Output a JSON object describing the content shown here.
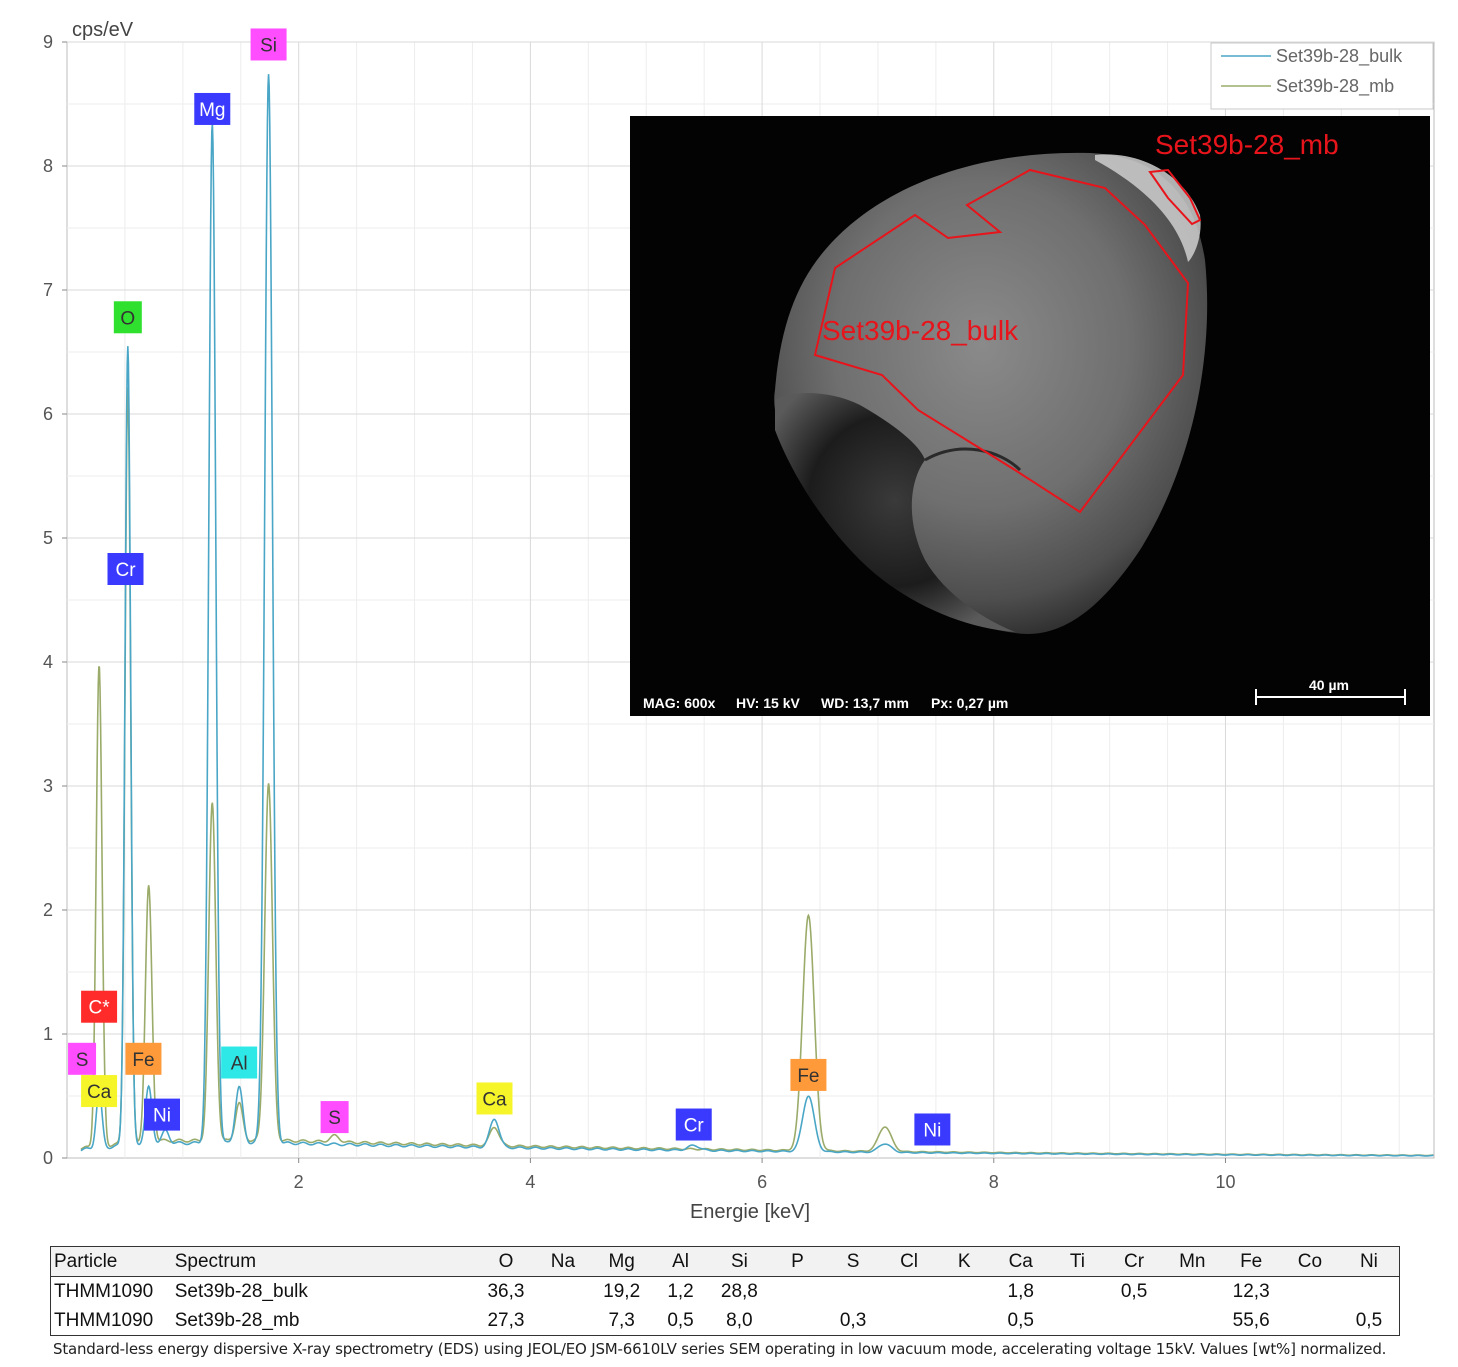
{
  "chart_data": {
    "type": "line",
    "ylabel": "cps/eV",
    "xlabel": "Energie [keV]",
    "xlim": [
      0.0,
      11.8
    ],
    "ylim": [
      0,
      9
    ],
    "xticks": [
      2,
      4,
      6,
      8,
      10
    ],
    "yticks": [
      0,
      1,
      2,
      3,
      4,
      5,
      6,
      7,
      8,
      9
    ],
    "grid": true,
    "legend_position": "top-right",
    "series": [
      {
        "name": "Set39b-28_bulk",
        "color": "#4aa6c6",
        "background": 0.12,
        "peaks": [
          {
            "x": 0.277,
            "y": 0.45,
            "w": 0.025
          },
          {
            "x": 0.525,
            "y": 6.45,
            "w": 0.024
          },
          {
            "x": 0.705,
            "y": 0.45,
            "w": 0.028
          },
          {
            "x": 0.851,
            "y": 0.1,
            "w": 0.03
          },
          {
            "x": 1.254,
            "y": 8.22,
            "w": 0.03
          },
          {
            "x": 1.486,
            "y": 0.45,
            "w": 0.032
          },
          {
            "x": 1.74,
            "y": 8.62,
            "w": 0.033
          },
          {
            "x": 3.69,
            "y": 0.23,
            "w": 0.04
          },
          {
            "x": 5.41,
            "y": 0.04,
            "w": 0.05
          },
          {
            "x": 6.4,
            "y": 0.45,
            "w": 0.05
          },
          {
            "x": 7.06,
            "y": 0.07,
            "w": 0.055
          }
        ]
      },
      {
        "name": "Set39b-28_mb",
        "color": "#9aab6a",
        "background": 0.14,
        "peaks": [
          {
            "x": 0.277,
            "y": 3.88,
            "w": 0.025
          },
          {
            "x": 0.525,
            "y": 6.1,
            "w": 0.024
          },
          {
            "x": 0.705,
            "y": 2.05,
            "w": 0.028
          },
          {
            "x": 1.254,
            "y": 2.72,
            "w": 0.03
          },
          {
            "x": 1.486,
            "y": 0.3,
            "w": 0.032
          },
          {
            "x": 1.74,
            "y": 2.88,
            "w": 0.033
          },
          {
            "x": 2.31,
            "y": 0.05,
            "w": 0.04
          },
          {
            "x": 3.69,
            "y": 0.15,
            "w": 0.04
          },
          {
            "x": 6.4,
            "y": 1.9,
            "w": 0.05
          },
          {
            "x": 7.06,
            "y": 0.2,
            "w": 0.055
          }
        ]
      }
    ],
    "element_labels": [
      {
        "text": "Si",
        "x": 1.74,
        "y": 8.98,
        "bg": "#ff4dff"
      },
      {
        "text": "Mg",
        "x": 1.254,
        "y": 8.46,
        "bg": "#3a3aff"
      },
      {
        "text": "O",
        "x": 0.525,
        "y": 6.78,
        "bg": "#2fe02f"
      },
      {
        "text": "Cr",
        "x": 0.505,
        "y": 4.75,
        "bg": "#3a3aff"
      },
      {
        "text": "C*",
        "x": 0.277,
        "y": 1.22,
        "bg": "#ff2b2b"
      },
      {
        "text": "S",
        "x": 0.13,
        "y": 0.8,
        "bg": "#ff4dff"
      },
      {
        "text": "Ca",
        "x": 0.277,
        "y": 0.54,
        "bg": "#f5f52a"
      },
      {
        "text": "Fe",
        "x": 0.66,
        "y": 0.8,
        "bg": "#ff9a3a"
      },
      {
        "text": "Ni",
        "x": 0.82,
        "y": 0.35,
        "bg": "#3a3aff"
      },
      {
        "text": "Al",
        "x": 1.486,
        "y": 0.77,
        "bg": "#2ee8e8"
      },
      {
        "text": "S",
        "x": 2.31,
        "y": 0.33,
        "bg": "#ff4dff"
      },
      {
        "text": "Ca",
        "x": 3.69,
        "y": 0.48,
        "bg": "#f5f52a"
      },
      {
        "text": "Cr",
        "x": 5.41,
        "y": 0.27,
        "bg": "#3a3aff"
      },
      {
        "text": "Fe",
        "x": 6.4,
        "y": 0.67,
        "bg": "#ff9a3a"
      },
      {
        "text": "Ni",
        "x": 7.47,
        "y": 0.23,
        "bg": "#3a3aff"
      }
    ]
  },
  "sem_inset": {
    "info": {
      "mag": "MAG: 600x",
      "hv": "HV: 15 kV",
      "wd": "WD: 13,7 mm",
      "px": "Px: 0,27 µm"
    },
    "scale_bar": "40 µm",
    "regions": [
      {
        "name": "Set39b-28_mb"
      },
      {
        "name": "Set39b-28_bulk"
      }
    ]
  },
  "table": {
    "headers": [
      "Particle",
      "Spectrum",
      "O",
      "Na",
      "Mg",
      "Al",
      "Si",
      "P",
      "S",
      "Cl",
      "K",
      "Ca",
      "Ti",
      "Cr",
      "Mn",
      "Fe",
      "Co",
      "Ni"
    ],
    "rows": [
      [
        "THMM1090",
        "Set39b-28_bulk",
        "36,3",
        "",
        "19,2",
        "1,2",
        "28,8",
        "",
        "",
        "",
        "",
        "1,8",
        "",
        "0,5",
        "",
        "12,3",
        "",
        ""
      ],
      [
        "THMM1090",
        "Set39b-28_mb",
        "27,3",
        "",
        "7,3",
        "0,5",
        "8,0",
        "",
        "0,3",
        "",
        "",
        "0,5",
        "",
        "",
        "",
        "55,6",
        "",
        "0,5"
      ]
    ]
  },
  "caption": "Standard-less energy dispersive X-ray spectrometry (EDS) using JEOL/EO JSM-6610LV series SEM operating in low vacuum mode, accelerating voltage 15kV. Values [wt%] normalized."
}
